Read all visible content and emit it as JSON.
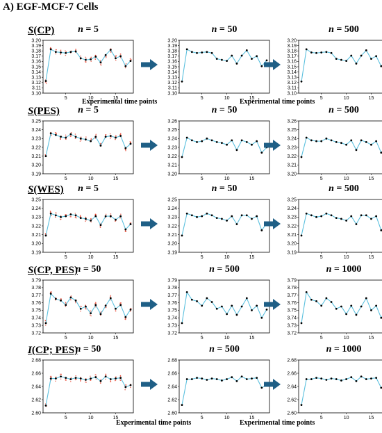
{
  "figure": {
    "title": "A) EGF-MCF-7 Cells",
    "xlabel": "Experimental time points"
  },
  "colors": {
    "line": "#5bc0de",
    "point": "#000000",
    "scatter": "#e8442f",
    "arrow": "#1f5f86"
  },
  "chart_data": [
    {
      "type": "line",
      "row_label": "S(CP)",
      "row_label_italic": "S",
      "row_label_rest": "(CP)",
      "xticks": [
        5,
        10,
        15
      ],
      "panels": [
        {
          "n": "5",
          "ylim": [
            3.1,
            3.2
          ],
          "yticks": [
            "3.10",
            "3.11",
            "3.12",
            "3.13",
            "3.14",
            "3.15",
            "3.16",
            "3.17",
            "3.18",
            "3.19",
            "3.20"
          ],
          "scatter": true,
          "x": [
            1,
            2,
            3,
            4,
            5,
            6,
            7,
            8,
            9,
            10,
            11,
            12,
            13,
            14,
            15,
            16,
            17,
            18
          ],
          "y": [
            3.123,
            3.183,
            3.178,
            3.177,
            3.176,
            3.178,
            3.179,
            3.166,
            3.163,
            3.164,
            3.169,
            3.158,
            3.172,
            3.182,
            3.166,
            3.17,
            3.151,
            3.161
          ]
        },
        {
          "n": "50",
          "ylim": [
            3.1,
            3.2
          ],
          "yticks": [
            "3.10",
            "3.11",
            "3.12",
            "3.13",
            "3.14",
            "3.15",
            "3.16",
            "3.17",
            "3.18",
            "3.19",
            "3.20"
          ],
          "scatter": false,
          "x": [
            1,
            2,
            3,
            4,
            5,
            6,
            7,
            8,
            9,
            10,
            11,
            12,
            13,
            14,
            15,
            16,
            17,
            18
          ],
          "y": [
            3.122,
            3.183,
            3.178,
            3.176,
            3.177,
            3.178,
            3.176,
            3.165,
            3.163,
            3.161,
            3.171,
            3.156,
            3.171,
            3.181,
            3.165,
            3.17,
            3.151,
            3.162
          ]
        },
        {
          "n": "500",
          "ylim": [
            3.1,
            3.2
          ],
          "yticks": [
            "3.10",
            "3.11",
            "3.12",
            "3.13",
            "3.14",
            "3.15",
            "3.16",
            "3.17",
            "3.18",
            "3.19",
            "3.20"
          ],
          "scatter": false,
          "x": [
            1,
            2,
            3,
            4,
            5,
            6,
            7,
            8,
            9,
            10,
            11,
            12,
            13,
            14,
            15,
            16,
            17,
            18
          ],
          "y": [
            3.122,
            3.183,
            3.177,
            3.176,
            3.177,
            3.178,
            3.176,
            3.165,
            3.163,
            3.161,
            3.171,
            3.156,
            3.171,
            3.181,
            3.165,
            3.17,
            3.151,
            3.162
          ]
        }
      ]
    },
    {
      "type": "line",
      "row_label": "S(PES)",
      "row_label_italic": "S",
      "row_label_rest": "(PES)",
      "xticks": [
        5,
        10,
        15
      ],
      "panels": [
        {
          "n": "5",
          "ylim": [
            3.19,
            3.25
          ],
          "yticks": [
            "3.19",
            "3.20",
            "3.21",
            "3.22",
            "3.23",
            "3.24",
            "3.25"
          ],
          "scatter": true,
          "x": [
            1,
            2,
            3,
            4,
            5,
            6,
            7,
            8,
            9,
            10,
            11,
            12,
            13,
            14,
            15,
            16,
            17,
            18
          ],
          "y": [
            3.21,
            3.236,
            3.234,
            3.232,
            3.231,
            3.235,
            3.232,
            3.23,
            3.229,
            3.227,
            3.232,
            3.222,
            3.232,
            3.233,
            3.231,
            3.233,
            3.219,
            3.224
          ]
        },
        {
          "n": "50",
          "ylim": [
            3.2,
            3.26
          ],
          "yticks": [
            "3.20",
            "3.21",
            "3.22",
            "3.23",
            "3.24",
            "3.25",
            "3.26"
          ],
          "scatter": false,
          "x": [
            1,
            2,
            3,
            4,
            5,
            6,
            7,
            8,
            9,
            10,
            11,
            12,
            13,
            14,
            15,
            16,
            17,
            18
          ],
          "y": [
            3.219,
            3.241,
            3.238,
            3.236,
            3.237,
            3.24,
            3.238,
            3.236,
            3.235,
            3.233,
            3.238,
            3.227,
            3.238,
            3.236,
            3.233,
            3.237,
            3.224,
            3.23
          ]
        },
        {
          "n": "500",
          "ylim": [
            3.2,
            3.26
          ],
          "yticks": [
            "3.20",
            "3.21",
            "3.22",
            "3.23",
            "3.24",
            "3.25",
            "3.26"
          ],
          "scatter": false,
          "x": [
            1,
            2,
            3,
            4,
            5,
            6,
            7,
            8,
            9,
            10,
            11,
            12,
            13,
            14,
            15,
            16,
            17,
            18
          ],
          "y": [
            3.219,
            3.241,
            3.238,
            3.237,
            3.237,
            3.24,
            3.238,
            3.236,
            3.235,
            3.233,
            3.238,
            3.227,
            3.238,
            3.236,
            3.233,
            3.237,
            3.224,
            3.231
          ]
        }
      ]
    },
    {
      "type": "line",
      "row_label": "S(WES)",
      "row_label_italic": "S",
      "row_label_rest": "(WES)",
      "xticks": [
        5,
        10,
        15
      ],
      "panels": [
        {
          "n": "5",
          "ylim": [
            3.19,
            3.25
          ],
          "yticks": [
            "3.19",
            "3.20",
            "3.21",
            "3.22",
            "3.23",
            "3.24",
            "3.25"
          ],
          "scatter": true,
          "x": [
            1,
            2,
            3,
            4,
            5,
            6,
            7,
            8,
            9,
            10,
            11,
            12,
            13,
            14,
            15,
            16,
            17,
            18
          ],
          "y": [
            3.209,
            3.234,
            3.232,
            3.23,
            3.231,
            3.233,
            3.232,
            3.229,
            3.228,
            3.226,
            3.231,
            3.221,
            3.231,
            3.231,
            3.227,
            3.231,
            3.216,
            3.222
          ]
        },
        {
          "n": "50",
          "ylim": [
            3.19,
            3.25
          ],
          "yticks": [
            "3.19",
            "3.20",
            "3.21",
            "3.22",
            "3.23",
            "3.24",
            "3.25"
          ],
          "scatter": false,
          "x": [
            1,
            2,
            3,
            4,
            5,
            6,
            7,
            8,
            9,
            10,
            11,
            12,
            13,
            14,
            15,
            16,
            17,
            18
          ],
          "y": [
            3.209,
            3.234,
            3.232,
            3.23,
            3.231,
            3.234,
            3.232,
            3.229,
            3.228,
            3.226,
            3.231,
            3.222,
            3.232,
            3.232,
            3.228,
            3.231,
            3.215,
            3.223
          ]
        },
        {
          "n": "500",
          "ylim": [
            3.19,
            3.25
          ],
          "yticks": [
            "3.19",
            "3.20",
            "3.21",
            "3.22",
            "3.23",
            "3.24",
            "3.25"
          ],
          "scatter": false,
          "x": [
            1,
            2,
            3,
            4,
            5,
            6,
            7,
            8,
            9,
            10,
            11,
            12,
            13,
            14,
            15,
            16,
            17,
            18
          ],
          "y": [
            3.209,
            3.234,
            3.232,
            3.23,
            3.231,
            3.234,
            3.232,
            3.229,
            3.228,
            3.226,
            3.231,
            3.222,
            3.232,
            3.232,
            3.228,
            3.231,
            3.215,
            3.223
          ]
        }
      ]
    },
    {
      "type": "line",
      "row_label": "S(CP, PES)",
      "row_label_italic": "S",
      "row_label_rest": "(CP, PES)",
      "xticks": [
        5,
        10,
        15
      ],
      "panels": [
        {
          "n": "50",
          "ylim": [
            3.72,
            3.79
          ],
          "yticks": [
            "3.72",
            "3.73",
            "3.74",
            "3.75",
            "3.76",
            "3.77",
            "3.78",
            "3.79"
          ],
          "scatter": true,
          "x": [
            1,
            2,
            3,
            4,
            5,
            6,
            7,
            8,
            9,
            10,
            11,
            12,
            13,
            14,
            15,
            16,
            17,
            18
          ],
          "y": [
            3.733,
            3.772,
            3.765,
            3.763,
            3.757,
            3.767,
            3.763,
            3.752,
            3.755,
            3.746,
            3.757,
            3.745,
            3.756,
            3.766,
            3.752,
            3.757,
            3.741,
            3.751
          ]
        },
        {
          "n": "500",
          "ylim": [
            3.72,
            3.79
          ],
          "yticks": [
            "3.72",
            "3.73",
            "3.74",
            "3.75",
            "3.76",
            "3.77",
            "3.78",
            "3.79"
          ],
          "scatter": false,
          "x": [
            1,
            2,
            3,
            4,
            5,
            6,
            7,
            8,
            9,
            10,
            11,
            12,
            13,
            14,
            15,
            16,
            17,
            18
          ],
          "y": [
            3.733,
            3.774,
            3.764,
            3.762,
            3.756,
            3.766,
            3.761,
            3.752,
            3.755,
            3.745,
            3.756,
            3.744,
            3.755,
            3.766,
            3.75,
            3.756,
            3.74,
            3.751
          ]
        },
        {
          "n": "1000",
          "ylim": [
            3.72,
            3.79
          ],
          "yticks": [
            "3.72",
            "3.73",
            "3.74",
            "3.75",
            "3.76",
            "3.77",
            "3.78",
            "3.79"
          ],
          "scatter": false,
          "x": [
            1,
            2,
            3,
            4,
            5,
            6,
            7,
            8,
            9,
            10,
            11,
            12,
            13,
            14,
            15,
            16,
            17,
            18
          ],
          "y": [
            3.733,
            3.774,
            3.764,
            3.762,
            3.756,
            3.766,
            3.761,
            3.752,
            3.755,
            3.745,
            3.756,
            3.744,
            3.755,
            3.766,
            3.75,
            3.756,
            3.74,
            3.751
          ]
        }
      ]
    },
    {
      "type": "line",
      "row_label": "I(CP; PES)",
      "row_label_italic": "I",
      "row_label_rest": "(CP; PES)",
      "xticks": [
        5,
        10,
        15
      ],
      "panels": [
        {
          "n": "50",
          "ylim": [
            2.6,
            2.68
          ],
          "yticks": [
            "2.60",
            "2.62",
            "2.64",
            "2.66",
            "2.68"
          ],
          "scatter": true,
          "x": [
            1,
            2,
            3,
            4,
            5,
            6,
            7,
            8,
            9,
            10,
            11,
            12,
            13,
            14,
            15,
            16,
            17,
            18
          ],
          "y": [
            2.611,
            2.652,
            2.652,
            2.655,
            2.653,
            2.651,
            2.653,
            2.652,
            2.65,
            2.652,
            2.654,
            2.648,
            2.655,
            2.651,
            2.652,
            2.653,
            2.639,
            2.642
          ]
        },
        {
          "n": "500",
          "ylim": [
            2.6,
            2.68
          ],
          "yticks": [
            "2.60",
            "2.62",
            "2.64",
            "2.66",
            "2.68"
          ],
          "scatter": false,
          "x": [
            1,
            2,
            3,
            4,
            5,
            6,
            7,
            8,
            9,
            10,
            11,
            12,
            13,
            14,
            15,
            16,
            17,
            18
          ],
          "y": [
            2.612,
            2.651,
            2.651,
            2.653,
            2.652,
            2.65,
            2.652,
            2.651,
            2.649,
            2.651,
            2.654,
            2.648,
            2.655,
            2.651,
            2.652,
            2.653,
            2.638,
            2.642
          ]
        },
        {
          "n": "1000",
          "ylim": [
            2.6,
            2.68
          ],
          "yticks": [
            "2.60",
            "2.62",
            "2.64",
            "2.66",
            "2.68"
          ],
          "scatter": false,
          "x": [
            1,
            2,
            3,
            4,
            5,
            6,
            7,
            8,
            9,
            10,
            11,
            12,
            13,
            14,
            15,
            16,
            17,
            18
          ],
          "y": [
            2.612,
            2.651,
            2.651,
            2.653,
            2.652,
            2.65,
            2.652,
            2.651,
            2.649,
            2.651,
            2.654,
            2.648,
            2.655,
            2.651,
            2.652,
            2.653,
            2.638,
            2.642
          ]
        }
      ]
    }
  ]
}
